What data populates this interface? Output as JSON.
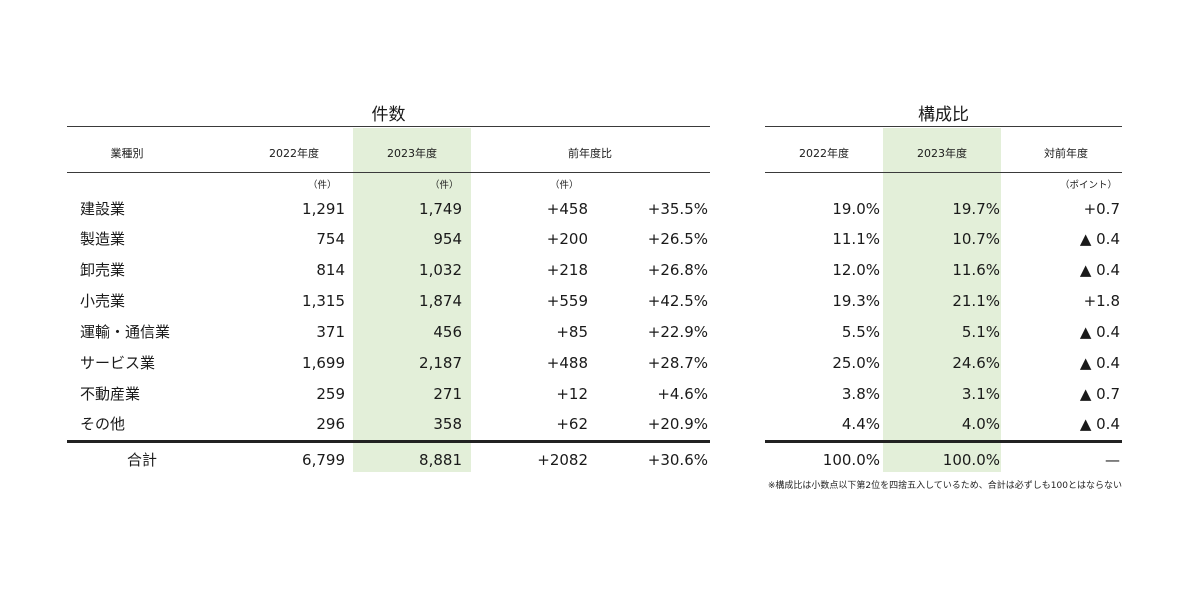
{
  "headers": {
    "group_count": "件数",
    "group_ratio": "構成比",
    "industry": "業種別",
    "y2022": "2022年度",
    "y2023": "2023年度",
    "yoy": "前年度比",
    "r2022": "2022年度",
    "r2023": "2023年度",
    "ryoy": "対前年度"
  },
  "units": {
    "c2022": "（件）",
    "c2023": "（件）",
    "cdiff": "（件）",
    "rdiff": "（ポイント）"
  },
  "rows": [
    {
      "industry": "建設業",
      "c2022": "1,291",
      "c2023": "1,749",
      "diff": "+458",
      "pct": "+35.5%",
      "r2022": "19.0%",
      "r2023": "19.7%",
      "rdiff": "+0.7"
    },
    {
      "industry": "製造業",
      "c2022": "754",
      "c2023": "954",
      "diff": "+200",
      "pct": "+26.5%",
      "r2022": "11.1%",
      "r2023": "10.7%",
      "rdiff": "▲ 0.4"
    },
    {
      "industry": "卸売業",
      "c2022": "814",
      "c2023": "1,032",
      "diff": "+218",
      "pct": "+26.8%",
      "r2022": "12.0%",
      "r2023": "11.6%",
      "rdiff": "▲ 0.4"
    },
    {
      "industry": "小売業",
      "c2022": "1,315",
      "c2023": "1,874",
      "diff": "+559",
      "pct": "+42.5%",
      "r2022": "19.3%",
      "r2023": "21.1%",
      "rdiff": "+1.8"
    },
    {
      "industry": "運輸・通信業",
      "c2022": "371",
      "c2023": "456",
      "diff": "+85",
      "pct": "+22.9%",
      "r2022": "5.5%",
      "r2023": "5.1%",
      "rdiff": "▲ 0.4"
    },
    {
      "industry": "サービス業",
      "c2022": "1,699",
      "c2023": "2,187",
      "diff": "+488",
      "pct": "+28.7%",
      "r2022": "25.0%",
      "r2023": "24.6%",
      "rdiff": "▲ 0.4"
    },
    {
      "industry": "不動産業",
      "c2022": "259",
      "c2023": "271",
      "diff": "+12",
      "pct": "+4.6%",
      "r2022": "3.8%",
      "r2023": "3.1%",
      "rdiff": "▲ 0.7"
    },
    {
      "industry": "その他",
      "c2022": "296",
      "c2023": "358",
      "diff": "+62",
      "pct": "+20.9%",
      "r2022": "4.4%",
      "r2023": "4.0%",
      "rdiff": "▲ 0.4"
    }
  ],
  "total": {
    "industry": "合計",
    "c2022": "6,799",
    "c2023": "8,881",
    "diff": "+2082",
    "pct": "+30.6%",
    "r2022": "100.0%",
    "r2023": "100.0%",
    "rdiff": "—"
  },
  "note": "※構成比は小数点以下第2位を四捨五入しているため、合計は必ずしも100とはならない"
}
